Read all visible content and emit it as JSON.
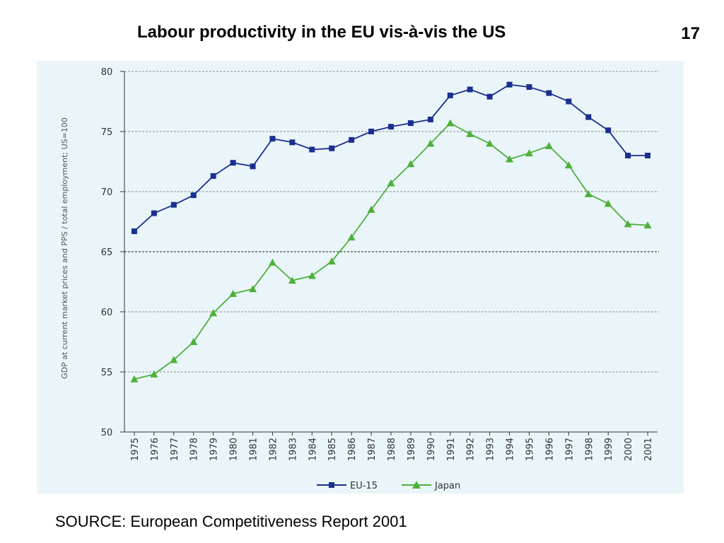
{
  "slide": {
    "title": "Labour productivity in the EU vis-à-vis the US",
    "number": "17",
    "source": "SOURCE: European Competitiveness Report 2001"
  },
  "chart_data": {
    "type": "line",
    "title": "",
    "xlabel": "",
    "ylabel": "GDP at current market prices and PPS / total employment; US=100",
    "ylim": [
      50,
      80
    ],
    "yticks": [
      50,
      55,
      60,
      65,
      70,
      75,
      80
    ],
    "categories": [
      "1975",
      "1976",
      "1977",
      "1978",
      "1979",
      "1980",
      "1981",
      "1982",
      "1983",
      "1984",
      "1985",
      "1986",
      "1987",
      "1988",
      "1989",
      "1990",
      "1991",
      "1992",
      "1993",
      "1994",
      "1995",
      "1996",
      "1997",
      "1998",
      "1999",
      "2000",
      "2001"
    ],
    "grid": "horizontal dashed at 55, 60, 65, 70, 75",
    "legend_position": "bottom",
    "series": [
      {
        "name": "EU-15",
        "color": "#1a2f8f",
        "marker": "square",
        "values": [
          66.7,
          68.2,
          68.9,
          69.7,
          71.3,
          72.4,
          72.1,
          74.4,
          74.1,
          73.5,
          73.6,
          74.3,
          75.0,
          75.4,
          75.7,
          76.0,
          78.0,
          78.5,
          77.9,
          78.9,
          78.7,
          78.2,
          77.5,
          76.2,
          75.1,
          73.0,
          73.0
        ]
      },
      {
        "name": "Japan",
        "color": "#4db03a",
        "marker": "triangle",
        "values": [
          54.4,
          54.8,
          56.0,
          57.5,
          59.9,
          61.5,
          61.9,
          64.1,
          62.6,
          63.0,
          64.2,
          66.2,
          68.5,
          70.7,
          72.3,
          74.0,
          75.7,
          74.8,
          74.0,
          72.7,
          73.2,
          73.8,
          72.2,
          69.8,
          69.0,
          67.3,
          67.2
        ]
      }
    ]
  }
}
